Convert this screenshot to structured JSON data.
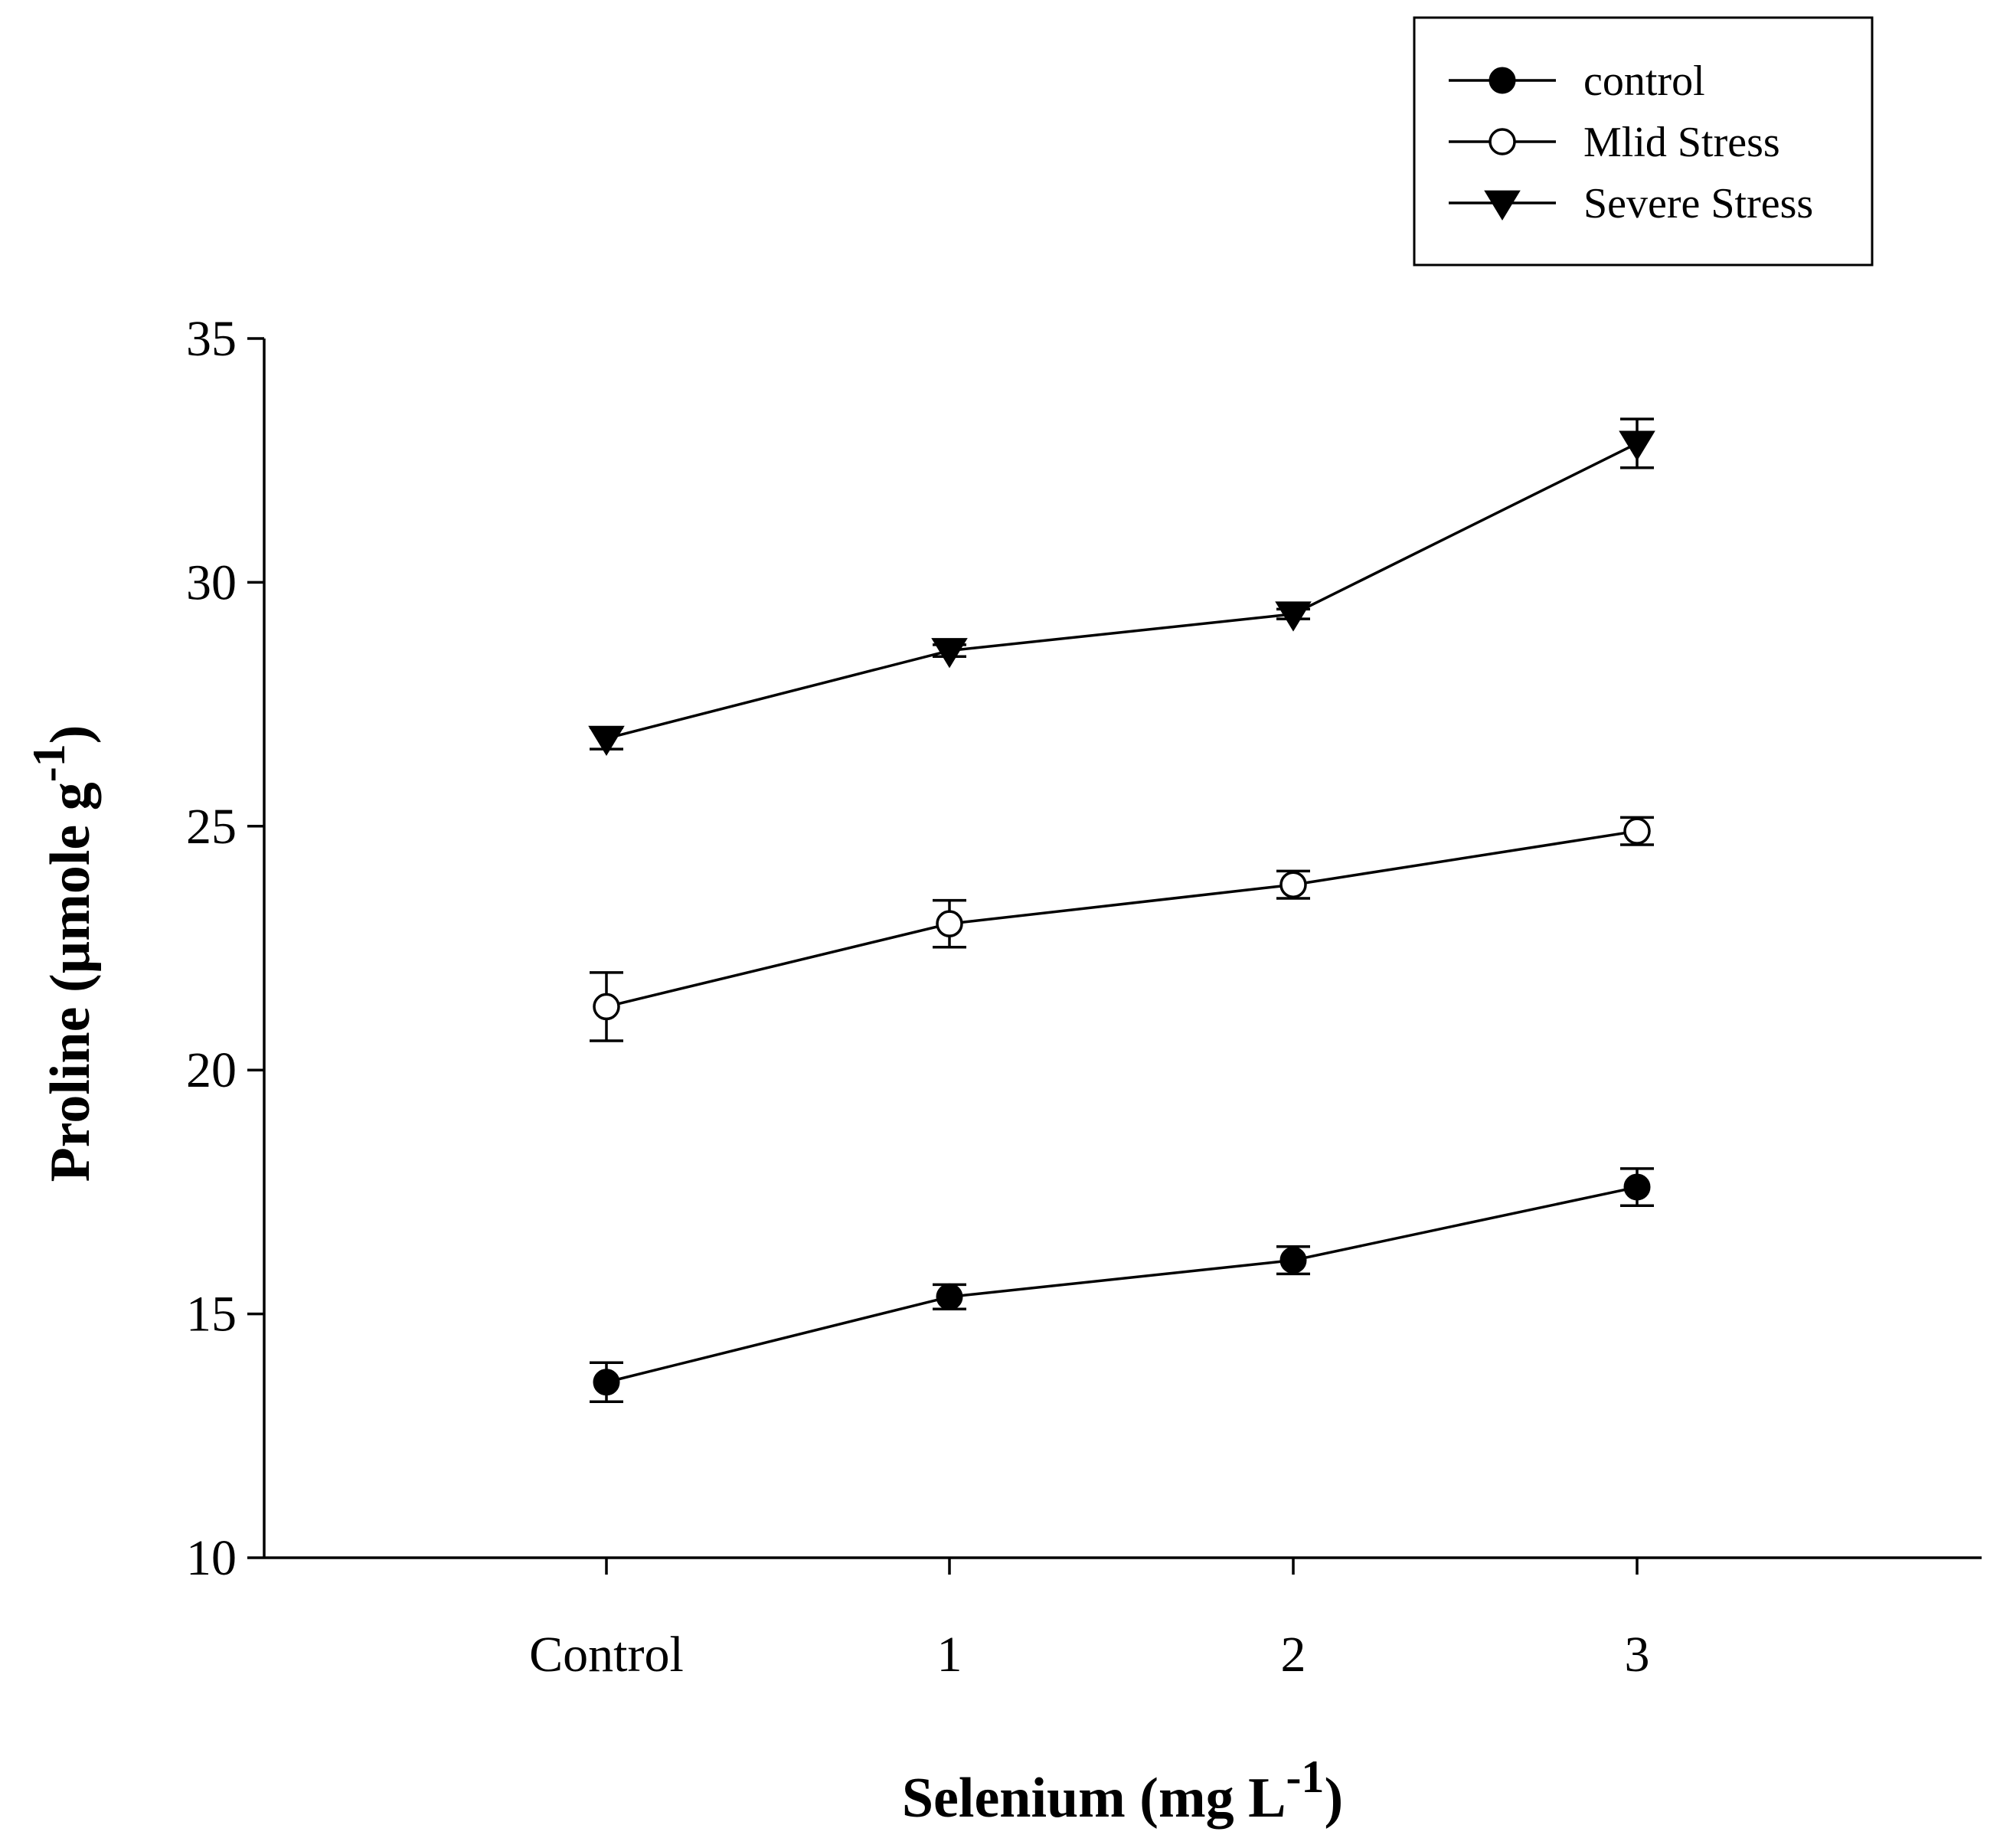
{
  "chart_data": {
    "type": "line",
    "title": "",
    "xlabel": "Selenium (mg L",
    "xlabel_superscript": "-1",
    "xlabel_close": ")",
    "ylabel": "Proline (µmole g",
    "ylabel_superscript": "-1",
    "ylabel_close": ")",
    "categories": [
      "Control",
      "1",
      "2",
      "3"
    ],
    "ylim": [
      10,
      35
    ],
    "yticks": [
      10,
      15,
      20,
      25,
      30,
      35
    ],
    "grid": false,
    "legend_position": "top-right",
    "series": [
      {
        "name": "control",
        "marker": "circle-filled",
        "values": [
          13.6,
          15.35,
          16.1,
          17.6
        ],
        "errors": [
          0.4,
          0.25,
          0.28,
          0.38
        ]
      },
      {
        "name": "Mlid Stress",
        "marker": "circle-open",
        "values": [
          21.3,
          23.0,
          23.8,
          24.9
        ],
        "errors": [
          0.7,
          0.48,
          0.28,
          0.28
        ]
      },
      {
        "name": "Severe Stress",
        "marker": "triangle-down-filled",
        "values": [
          26.8,
          28.6,
          29.35,
          32.85
        ],
        "errors": [
          0.22,
          0.12,
          0.1,
          0.5
        ]
      }
    ]
  }
}
